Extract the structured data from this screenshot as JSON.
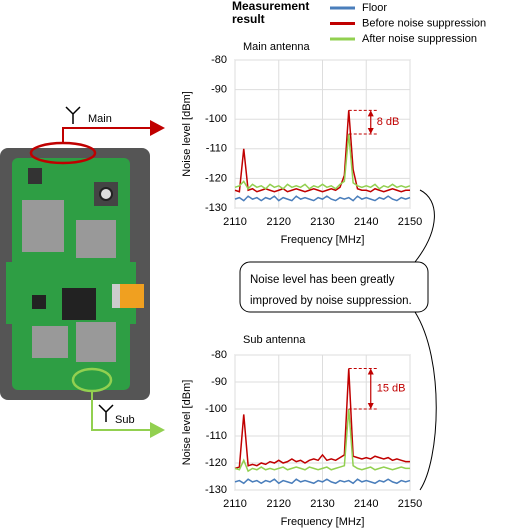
{
  "legend_title": "Measurement result",
  "callout": "Noise level has been greatly improved by noise suppression.",
  "board": {
    "main": "Main",
    "sub": "Sub"
  },
  "chart_data": [
    {
      "type": "line",
      "title": "Main antenna",
      "xlabel": "Frequency [MHz]",
      "ylabel": "Noise level [dBm]",
      "xlim": [
        2110,
        2150
      ],
      "xticks": [
        2110,
        2120,
        2130,
        2140,
        2150
      ],
      "ylim": [
        -130,
        -80
      ],
      "yticks": [
        -130,
        -120,
        -110,
        -100,
        -90,
        -80
      ],
      "grid": true,
      "legend": "top-right",
      "annotation": "8 dB",
      "x": [
        2110,
        2111,
        2112,
        2113,
        2114,
        2115,
        2116,
        2117,
        2118,
        2119,
        2120,
        2121,
        2122,
        2123,
        2124,
        2125,
        2126,
        2127,
        2128,
        2129,
        2130,
        2131,
        2132,
        2133,
        2134,
        2135,
        2136,
        2137,
        2138,
        2139,
        2140,
        2141,
        2142,
        2143,
        2144,
        2145,
        2146,
        2147,
        2148,
        2149,
        2150
      ],
      "series": [
        {
          "name": "Floor",
          "color": "#4a7ebb",
          "values": [
            -127,
            -126.5,
            -127.5,
            -126,
            -127,
            -126.5,
            -127.5,
            -126.5,
            -127,
            -126,
            -127.5,
            -126.5,
            -127,
            -127.5,
            -126,
            -127,
            -126.5,
            -127,
            -127.5,
            -126.5,
            -127,
            -126,
            -127,
            -127.5,
            -126.5,
            -127,
            -126.5,
            -127.5,
            -126,
            -127,
            -126.5,
            -127,
            -127.5,
            -126.5,
            -127,
            -126,
            -127,
            -127.5,
            -126.5,
            -127,
            -126.5
          ]
        },
        {
          "name": "Before noise suppression",
          "color": "#c00000",
          "values": [
            -124,
            -124.5,
            -110,
            -124,
            -123.5,
            -124.5,
            -124,
            -123.5,
            -124,
            -124.5,
            -124,
            -123.5,
            -124.5,
            -124,
            -123.5,
            -124,
            -124.5,
            -124,
            -123.5,
            -124,
            -124.5,
            -124,
            -123.5,
            -124,
            -123,
            -119,
            -97,
            -117,
            -123.5,
            -124,
            -124,
            -124.5,
            -123.5,
            -124,
            -124.5,
            -124,
            -123.5,
            -124,
            -124.5,
            -124,
            -124
          ]
        },
        {
          "name": "After noise suppression",
          "color": "#92d050",
          "values": [
            -123,
            -122.5,
            -121,
            -123.5,
            -122,
            -123,
            -122.5,
            -123.5,
            -122,
            -123,
            -122.5,
            -123.5,
            -122,
            -123,
            -122.5,
            -123,
            -122,
            -123.5,
            -122.5,
            -123,
            -122,
            -123,
            -122.5,
            -123.5,
            -122,
            -121,
            -105,
            -121.5,
            -122.5,
            -123,
            -122.5,
            -123,
            -122,
            -123.5,
            -122.5,
            -123,
            -122,
            -123,
            -122.5,
            -123,
            -122.5
          ]
        }
      ]
    },
    {
      "type": "line",
      "title": "Sub antenna",
      "xlabel": "Frequency [MHz]",
      "ylabel": "Noise level [dBm]",
      "xlim": [
        2110,
        2150
      ],
      "xticks": [
        2110,
        2120,
        2130,
        2140,
        2150
      ],
      "ylim": [
        -130,
        -80
      ],
      "yticks": [
        -130,
        -120,
        -110,
        -100,
        -90,
        -80
      ],
      "grid": true,
      "annotation": "15 dB",
      "x": [
        2110,
        2111,
        2112,
        2113,
        2114,
        2115,
        2116,
        2117,
        2118,
        2119,
        2120,
        2121,
        2122,
        2123,
        2124,
        2125,
        2126,
        2127,
        2128,
        2129,
        2130,
        2131,
        2132,
        2133,
        2134,
        2135,
        2136,
        2137,
        2138,
        2139,
        2140,
        2141,
        2142,
        2143,
        2144,
        2145,
        2146,
        2147,
        2148,
        2149,
        2150
      ],
      "series": [
        {
          "color": "#4a7ebb",
          "values": [
            -127,
            -126.5,
            -127.5,
            -126,
            -127,
            -126.5,
            -127.5,
            -126.5,
            -127,
            -126,
            -127.5,
            -126.5,
            -127,
            -127.5,
            -126,
            -127,
            -126.5,
            -127,
            -127.5,
            -126.5,
            -127,
            -126,
            -127,
            -127.5,
            -126.5,
            -127,
            -126.5,
            -127.5,
            -126,
            -127,
            -126.5,
            -127,
            -127.5,
            -126.5,
            -127,
            -126,
            -127,
            -127.5,
            -126.5,
            -127,
            -126.5
          ]
        },
        {
          "color": "#c00000",
          "values": [
            -122,
            -121.5,
            -102,
            -121,
            -120.5,
            -121,
            -120,
            -120.5,
            -119.5,
            -120,
            -119,
            -120,
            -119.5,
            -118.5,
            -119.5,
            -119,
            -120,
            -119,
            -118.5,
            -119,
            -117,
            -119,
            -118.5,
            -119,
            -118,
            -117,
            -85,
            -117.5,
            -118,
            -118.5,
            -118,
            -118.5,
            -117.5,
            -118,
            -118.5,
            -118,
            -119,
            -118.5,
            -119,
            -119.5,
            -119.5
          ]
        },
        {
          "color": "#92d050",
          "values": [
            -122,
            -122.5,
            -119,
            -123,
            -122,
            -122.5,
            -121.5,
            -122.5,
            -122,
            -122.5,
            -122,
            -121.5,
            -122.5,
            -122,
            -121.5,
            -122,
            -122.5,
            -121.5,
            -122,
            -122.5,
            -122,
            -121.5,
            -122.5,
            -122,
            -121.5,
            -121,
            -100,
            -121,
            -122,
            -122.5,
            -122,
            -121.5,
            -122.5,
            -122,
            -121.5,
            -122,
            -122.5,
            -122,
            -121.5,
            -122,
            -122
          ]
        }
      ]
    }
  ]
}
